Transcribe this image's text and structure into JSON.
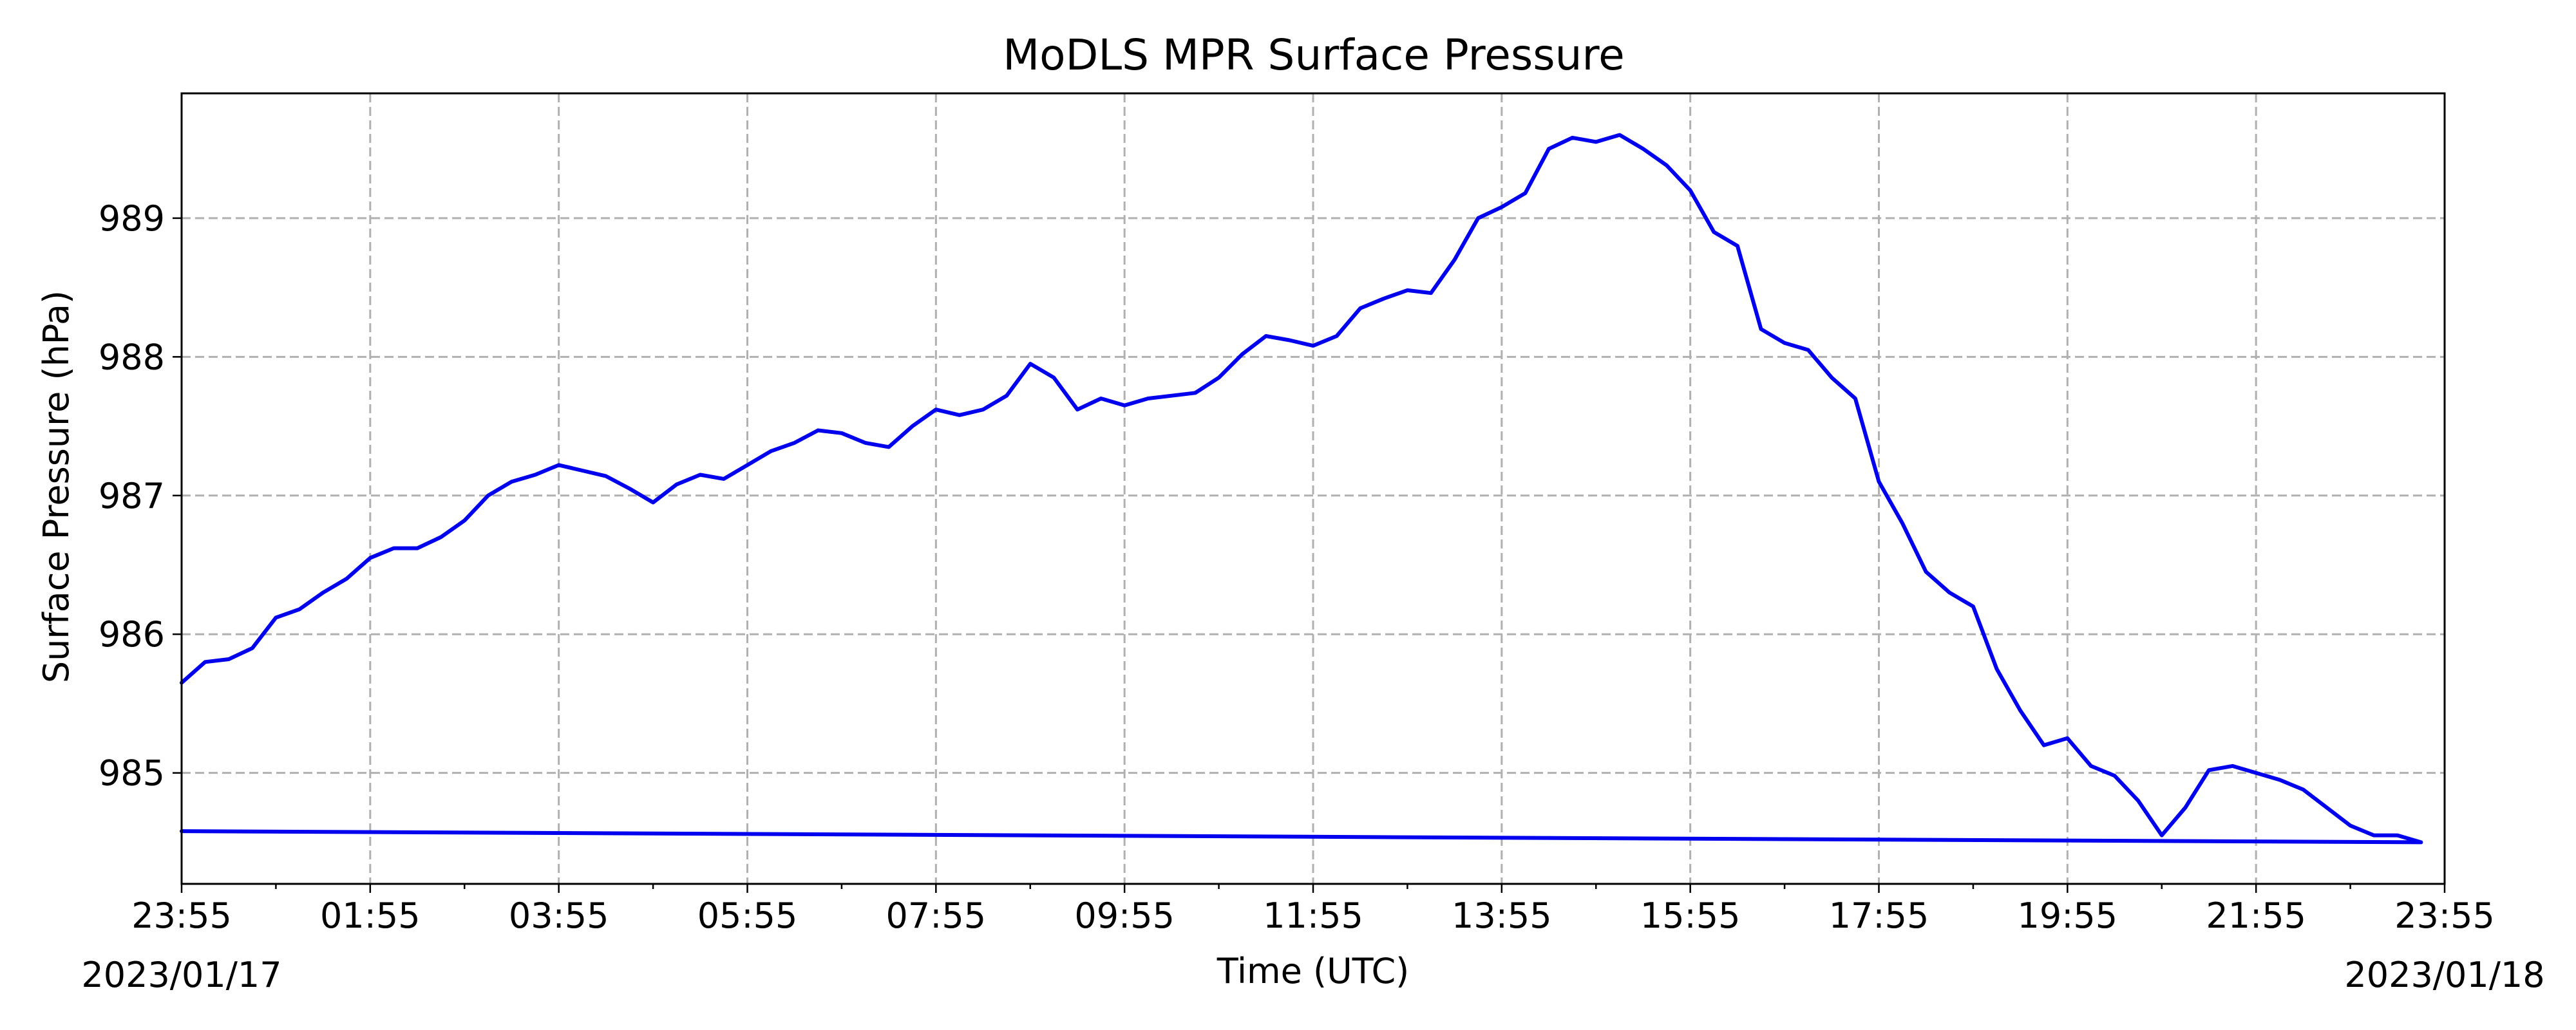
{
  "chart_data": {
    "type": "line",
    "title": "MoDLS MPR Surface Pressure",
    "xlabel": "Time (UTC)",
    "ylabel": "Surface Pressure (hPa)",
    "x_start_date": "2023/01/17",
    "x_end_date": "2023/01/18",
    "x_tick_labels": [
      "23:55",
      "01:55",
      "03:55",
      "05:55",
      "07:55",
      "09:55",
      "11:55",
      "13:55",
      "15:55",
      "17:55",
      "19:55",
      "21:55",
      "23:55"
    ],
    "y_ticks": [
      985,
      986,
      987,
      988,
      989
    ],
    "ylim": [
      984.2,
      989.9
    ],
    "grid": true,
    "series": [
      {
        "color": "#0000ee",
        "x": [
          "23:55",
          "00:10",
          "00:25",
          "00:40",
          "00:55",
          "01:10",
          "01:25",
          "01:40",
          "01:55",
          "02:10",
          "02:25",
          "02:40",
          "02:55",
          "03:10",
          "03:25",
          "03:40",
          "03:55",
          "04:10",
          "04:25",
          "04:40",
          "04:55",
          "05:10",
          "05:25",
          "05:40",
          "05:55",
          "06:10",
          "06:25",
          "06:40",
          "06:55",
          "07:10",
          "07:25",
          "07:40",
          "07:55",
          "08:10",
          "08:25",
          "08:40",
          "08:55",
          "09:10",
          "09:25",
          "09:40",
          "09:55",
          "10:10",
          "10:25",
          "10:40",
          "10:55",
          "11:10",
          "11:25",
          "11:40",
          "11:55",
          "12:10",
          "12:25",
          "12:40",
          "12:55",
          "13:10",
          "13:25",
          "13:40",
          "13:55",
          "14:10",
          "14:25",
          "14:40",
          "14:55",
          "15:10",
          "15:25",
          "15:40",
          "15:55",
          "16:10",
          "16:25",
          "16:40",
          "16:55",
          "17:10",
          "17:25",
          "17:40",
          "17:55",
          "18:10",
          "18:25",
          "18:40",
          "18:55",
          "19:10",
          "19:25",
          "19:40",
          "19:55",
          "20:10",
          "20:25",
          "20:40",
          "20:55",
          "21:10",
          "21:25",
          "21:40",
          "21:55",
          "22:10",
          "22:25",
          "22:40",
          "22:55",
          "23:10",
          "23:25",
          "23:40",
          "23:55"
        ],
        "y": [
          985.65,
          985.8,
          985.82,
          985.9,
          986.12,
          986.18,
          986.3,
          986.4,
          986.55,
          986.62,
          986.62,
          986.7,
          986.82,
          987.0,
          987.1,
          987.15,
          987.22,
          987.18,
          987.14,
          987.05,
          986.95,
          987.08,
          987.15,
          987.12,
          987.22,
          987.32,
          987.38,
          987.47,
          987.45,
          987.38,
          987.35,
          987.5,
          987.62,
          987.58,
          987.62,
          987.72,
          987.95,
          987.85,
          987.62,
          987.7,
          987.65,
          987.7,
          987.72,
          987.74,
          987.85,
          988.02,
          988.15,
          988.12,
          988.08,
          988.15,
          988.35,
          988.42,
          988.48,
          988.46,
          988.7,
          989.0,
          989.08,
          989.18,
          989.5,
          989.58,
          989.55,
          989.6,
          989.5,
          989.38,
          989.2,
          988.9,
          988.8,
          988.2,
          988.1,
          988.05,
          987.85,
          987.7,
          987.1,
          986.8,
          986.45,
          986.3,
          986.2,
          985.75,
          985.45,
          985.2,
          985.25,
          985.05,
          984.98,
          984.8,
          984.55,
          984.75,
          985.02,
          985.05,
          985.0,
          984.95,
          984.88,
          984.75,
          984.62,
          984.55,
          984.55,
          984.5,
          984.58
        ]
      }
    ]
  }
}
